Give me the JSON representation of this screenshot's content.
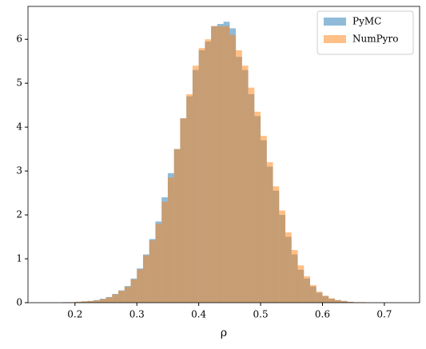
{
  "chart_data": {
    "type": "histogram",
    "xlabel": "ρ",
    "bins": [
      0.16,
      0.17,
      0.18,
      0.19,
      0.2,
      0.21,
      0.22,
      0.23,
      0.24,
      0.25,
      0.26,
      0.27,
      0.28,
      0.29,
      0.3,
      0.31,
      0.32,
      0.33,
      0.34,
      0.35,
      0.36,
      0.37,
      0.38,
      0.39,
      0.4,
      0.41,
      0.42,
      0.43,
      0.44,
      0.45,
      0.46,
      0.47,
      0.48,
      0.49,
      0.5,
      0.51,
      0.52,
      0.53,
      0.54,
      0.55,
      0.56,
      0.57,
      0.58,
      0.59,
      0.6,
      0.61,
      0.62,
      0.63,
      0.64,
      0.65,
      0.66,
      0.67,
      0.68,
      0.69,
      0.7,
      0.71,
      0.72
    ],
    "series": [
      {
        "name": "PyMC",
        "color": "#1f77b4",
        "values": [
          0,
          0,
          0.01,
          0.01,
          0.02,
          0.03,
          0.04,
          0.06,
          0.09,
          0.13,
          0.2,
          0.28,
          0.38,
          0.55,
          0.78,
          1.1,
          1.45,
          1.85,
          2.4,
          2.95,
          3.5,
          4.2,
          4.7,
          5.3,
          5.75,
          5.95,
          6.3,
          6.35,
          6.4,
          6.25,
          5.6,
          5.3,
          4.75,
          4.25,
          3.7,
          3.1,
          2.55,
          2.0,
          1.5,
          1.1,
          0.75,
          0.55,
          0.37,
          0.23,
          0.15,
          0.09,
          0.06,
          0.04,
          0.02,
          0.01,
          0.01,
          0,
          0,
          0,
          0,
          0
        ]
      },
      {
        "name": "NumPyro",
        "color": "#ff7f0e",
        "values": [
          0,
          0,
          0.01,
          0.01,
          0.02,
          0.03,
          0.04,
          0.05,
          0.08,
          0.12,
          0.19,
          0.27,
          0.36,
          0.53,
          0.76,
          1.08,
          1.42,
          1.8,
          2.3,
          2.85,
          3.5,
          4.2,
          4.75,
          5.4,
          5.8,
          6.0,
          6.3,
          6.3,
          6.3,
          6.1,
          5.75,
          5.4,
          4.9,
          4.35,
          3.8,
          3.2,
          2.65,
          2.1,
          1.6,
          1.2,
          0.85,
          0.6,
          0.4,
          0.25,
          0.16,
          0.1,
          0.06,
          0.04,
          0.02,
          0.01,
          0.01,
          0,
          0,
          0,
          0,
          0
        ]
      }
    ],
    "xlim": [
      0.124,
      0.757
    ],
    "xticks": [
      0.2,
      0.3,
      0.4,
      0.5,
      0.6,
      0.7
    ],
    "ylim": [
      0,
      6.75
    ],
    "yticks": [
      0,
      1,
      2,
      3,
      4,
      5,
      6
    ],
    "legend": "upper right"
  }
}
